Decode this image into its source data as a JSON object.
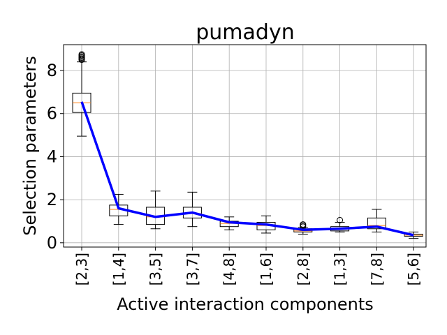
{
  "chart_data": {
    "type": "box",
    "title": "pumadyn",
    "xlabel": "Active interaction components",
    "ylabel": "Selection parameters",
    "categories": [
      "[2,3]",
      "[1,4]",
      "[3,5]",
      "[3,7]",
      "[4,8]",
      "[1,6]",
      "[2,8]",
      "[1,3]",
      "[7,8]",
      "[5,6]"
    ],
    "yticks": [
      0,
      2,
      4,
      6,
      8
    ],
    "ylim": [
      -0.2,
      9.2
    ],
    "grid": true,
    "boxes": [
      {
        "whislo": 4.95,
        "q1": 6.05,
        "med": 6.5,
        "q3": 6.95,
        "whishi": 8.4,
        "fliers": [
          8.5,
          8.55,
          8.6,
          8.65,
          8.7,
          8.75
        ]
      },
      {
        "whislo": 0.85,
        "q1": 1.25,
        "med": 1.55,
        "q3": 1.75,
        "whishi": 2.25,
        "fliers": []
      },
      {
        "whislo": 0.65,
        "q1": 0.85,
        "med": 1.2,
        "q3": 1.65,
        "whishi": 2.4,
        "fliers": []
      },
      {
        "whislo": 0.75,
        "q1": 1.15,
        "med": 1.35,
        "q3": 1.65,
        "whishi": 2.35,
        "fliers": []
      },
      {
        "whislo": 0.6,
        "q1": 0.75,
        "med": 0.9,
        "q3": 1.0,
        "whishi": 1.2,
        "fliers": []
      },
      {
        "whislo": 0.45,
        "q1": 0.6,
        "med": 0.8,
        "q3": 0.95,
        "whishi": 1.25,
        "fliers": []
      },
      {
        "whislo": 0.4,
        "q1": 0.5,
        "med": 0.55,
        "q3": 0.65,
        "whishi": 0.72,
        "fliers": [
          0.75,
          0.8,
          0.85
        ]
      },
      {
        "whislo": 0.5,
        "q1": 0.55,
        "med": 0.65,
        "q3": 0.75,
        "whishi": 0.95,
        "fliers": [
          1.05
        ]
      },
      {
        "whislo": 0.5,
        "q1": 0.65,
        "med": 0.8,
        "q3": 1.15,
        "whishi": 1.55,
        "fliers": []
      },
      {
        "whislo": 0.2,
        "q1": 0.3,
        "med": 0.35,
        "q3": 0.4,
        "whishi": 0.5,
        "fliers": []
      }
    ],
    "series": [
      {
        "values": [
          6.55,
          1.6,
          1.2,
          1.4,
          0.95,
          0.85,
          0.6,
          0.65,
          0.75,
          0.35
        ],
        "color": "#0000ff"
      }
    ],
    "colors": {
      "box": "#000000",
      "median": "#ff7f0e",
      "grid": "#b0b0b0"
    }
  }
}
